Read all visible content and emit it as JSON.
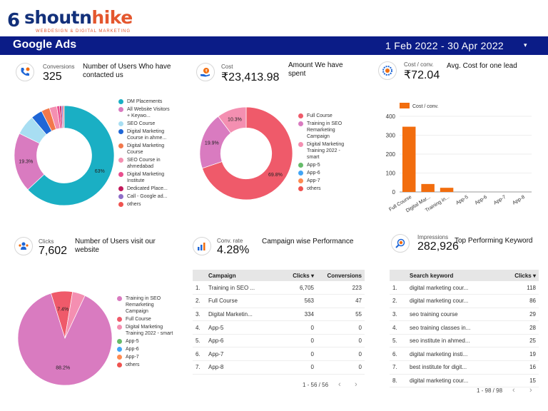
{
  "brand": {
    "mark": "6",
    "name_a": "shoutn",
    "name_b": "hike",
    "tagline": "WEBDESIGN & DIGITAL MARKETING"
  },
  "header": {
    "title": "Google Ads",
    "date_range": "1 Feb 2022 - 30 Apr 2022",
    "caret": "▾"
  },
  "kpis": {
    "conversions": {
      "label": "Conversions",
      "value": "325",
      "desc": "Number of Users Who have contacted us"
    },
    "cost": {
      "label": "Cost",
      "value": "₹23,413.98",
      "desc": "Amount We have spent"
    },
    "cost_conv": {
      "label": "Cost / conv.",
      "value": "₹72.04",
      "desc": "Avg. Cost for one lead"
    },
    "clicks": {
      "label": "Clicks",
      "value": "7,602",
      "desc": "Number of Users visit our website"
    },
    "conv_rate": {
      "label": "Conv. rate",
      "value": "4.28%",
      "desc": "Campaign wise Performance"
    },
    "impressions": {
      "label": "Impressions",
      "value": "282,926",
      "desc": "Top Performing Keyword"
    }
  },
  "chart_data": [
    {
      "type": "pie",
      "title": "",
      "donut": true,
      "categories": [
        "DM Placements",
        "All Website Visitors + Keywo...",
        "SEO Course",
        "Digital Marketing Course in ahme...",
        "Digital Marketing Course",
        "SEO Course in ahmedabad",
        "Digital Marketing Institute",
        "Dedicated Place...",
        "Call - Google ad...",
        "others"
      ],
      "values": [
        63,
        19.3,
        6.5,
        3.7,
        2.7,
        2.4,
        0.9,
        0.6,
        0.5,
        0.4
      ],
      "slice_labels": [
        "63%",
        "19.3%",
        "",
        "",
        "",
        "",
        "",
        "",
        "",
        ""
      ],
      "colors": [
        "#1aafc4",
        "#d97bc0",
        "#a8def2",
        "#1f66d6",
        "#f2784b",
        "#f48fb1",
        "#e94e8e",
        "#c2185b",
        "#8e6ec8",
        "#ef5350"
      ]
    },
    {
      "type": "pie",
      "title": "",
      "donut": true,
      "categories": [
        "Full Course",
        "Training in SEO Remarketing Campaign",
        "Digital Marketing Training 2022 - smart",
        "App-5",
        "App-6",
        "App-7",
        "others"
      ],
      "values": [
        69.8,
        19.9,
        10.3,
        0,
        0,
        0,
        0
      ],
      "slice_labels": [
        "69.8%",
        "19.9%",
        "10.3%",
        "",
        "",
        "",
        ""
      ],
      "colors": [
        "#ef5a6a",
        "#d97bc0",
        "#f48fb1",
        "#66bb6a",
        "#42a5f5",
        "#ff8a50",
        "#ef5350"
      ]
    },
    {
      "type": "bar",
      "title": "",
      "series": [
        {
          "name": "Cost / conv.",
          "values": [
            345,
            42,
            22,
            0,
            0,
            0,
            0
          ]
        }
      ],
      "categories": [
        "Full Course",
        "Digital Mar...",
        "Training in...",
        "App-5",
        "App-6",
        "App-7",
        "App-8"
      ],
      "ylim": [
        0,
        400
      ],
      "yticks": [
        "0",
        "100",
        "200",
        "300",
        "400"
      ],
      "color": "#f26d0e"
    },
    {
      "type": "pie",
      "title": "",
      "donut": false,
      "categories": [
        "Training in SEO Remarketing Campaign",
        "Full Course",
        "Digital Marketing Training 2022 - smart",
        "App-5",
        "App-6",
        "App-7",
        "others"
      ],
      "values": [
        88.2,
        7.4,
        4.4,
        0,
        0,
        0,
        0
      ],
      "slice_labels": [
        "88.2%",
        "7.4%",
        "",
        "",
        "",
        "",
        ""
      ],
      "colors": [
        "#d97bc0",
        "#ef5a6a",
        "#f48fb1",
        "#66bb6a",
        "#42a5f5",
        "#ff8a50",
        "#ef5350"
      ]
    }
  ],
  "campaign_table": {
    "headers": {
      "campaign": "Campaign",
      "clicks": "Clicks ▾",
      "conversions": "Conversions"
    },
    "rows": [
      {
        "n": "1.",
        "campaign": "Training in SEO ...",
        "clicks": "6,705",
        "conversions": "223"
      },
      {
        "n": "2.",
        "campaign": "Full Course",
        "clicks": "563",
        "conversions": "47"
      },
      {
        "n": "3.",
        "campaign": "Digital Marketin...",
        "clicks": "334",
        "conversions": "55"
      },
      {
        "n": "4.",
        "campaign": "App-5",
        "clicks": "0",
        "conversions": "0"
      },
      {
        "n": "5.",
        "campaign": "App-6",
        "clicks": "0",
        "conversions": "0"
      },
      {
        "n": "6.",
        "campaign": "App-7",
        "clicks": "0",
        "conversions": "0"
      },
      {
        "n": "7.",
        "campaign": "App-8",
        "clicks": "0",
        "conversions": "0"
      }
    ],
    "pager": "1 - 56 / 56"
  },
  "keyword_table": {
    "headers": {
      "keyword": "Search keyword",
      "clicks": "Clicks ▾"
    },
    "rows": [
      {
        "n": "1.",
        "keyword": "digital marketing cour...",
        "clicks": "118"
      },
      {
        "n": "2.",
        "keyword": "digital marketing cour...",
        "clicks": "86"
      },
      {
        "n": "3.",
        "keyword": "seo training course",
        "clicks": "29"
      },
      {
        "n": "4.",
        "keyword": "seo training classes in...",
        "clicks": "28"
      },
      {
        "n": "5.",
        "keyword": "seo institute in ahmed...",
        "clicks": "25"
      },
      {
        "n": "6.",
        "keyword": "digital marketing insti...",
        "clicks": "19"
      },
      {
        "n": "7.",
        "keyword": "best institute for digit...",
        "clicks": "16"
      },
      {
        "n": "8.",
        "keyword": "digital marketing cour...",
        "clicks": "15"
      }
    ],
    "pager": "1 - 98 / 98"
  },
  "pager_arrows": {
    "prev": "‹",
    "next": "›"
  }
}
